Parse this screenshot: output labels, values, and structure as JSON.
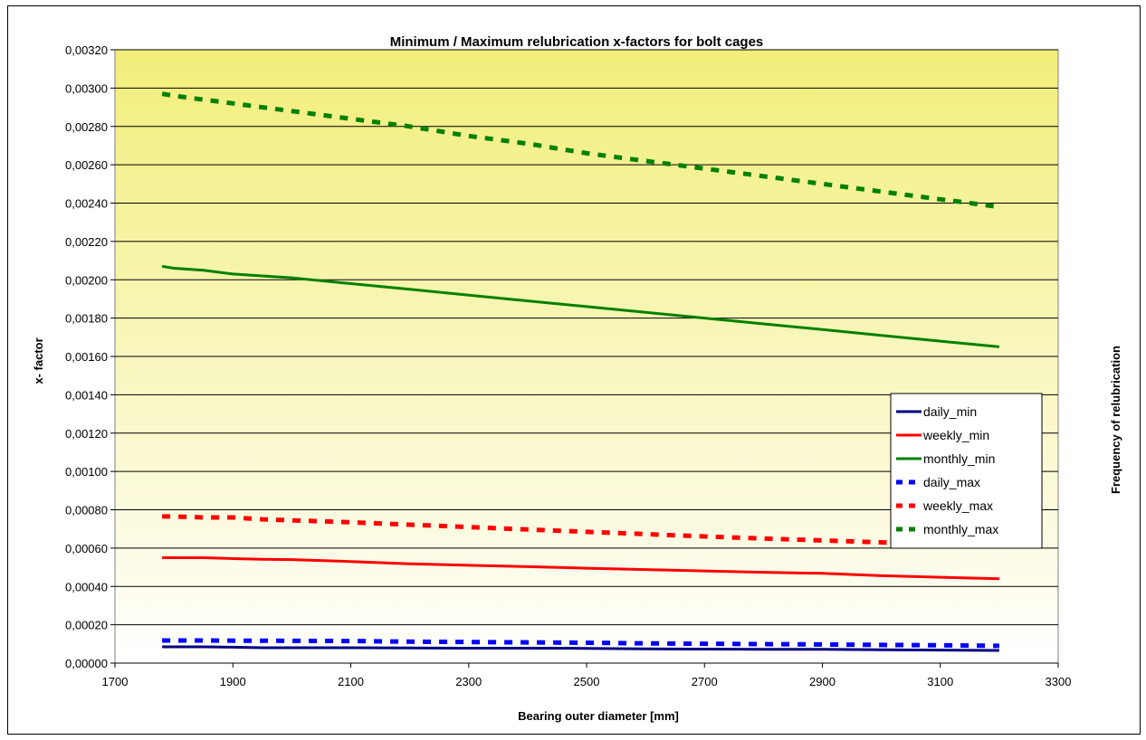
{
  "chart_data": {
    "type": "line",
    "title": "Minimum / Maximum relubrication x-factors for bolt cages",
    "xlabel": "Bearing outer diameter [mm]",
    "ylabel": "x- factor",
    "right_label": "Frequency of relubrication",
    "xlim": [
      1700,
      3300
    ],
    "ylim": [
      0,
      0.0032
    ],
    "x_ticks": [
      "1700",
      "1900",
      "2100",
      "2300",
      "2500",
      "2700",
      "2900",
      "3100",
      "3300"
    ],
    "y_ticks": [
      "0,00000",
      "0,00020",
      "0,00040",
      "0,00060",
      "0,00080",
      "0,00100",
      "0,00120",
      "0,00140",
      "0,00160",
      "0,00180",
      "0,00200",
      "0,00220",
      "0,00240",
      "0,00260",
      "0,00280",
      "0,00300",
      "0,00320"
    ],
    "grid": true,
    "legend_position": "right",
    "background": {
      "top_color": "#f2ee7a",
      "bottom_color": "#ffffff"
    },
    "series": [
      {
        "name": "daily_min",
        "color": "#000080",
        "style": "solid",
        "x": [
          1780,
          1800,
          1850,
          1900,
          1950,
          2000,
          2100,
          2200,
          2300,
          2400,
          2500,
          2600,
          2700,
          2800,
          2900,
          3000,
          3100,
          3200
        ],
        "y": [
          8.5e-05,
          8.5e-05,
          8.5e-05,
          8.3e-05,
          8e-05,
          8e-05,
          8e-05,
          7.9e-05,
          7.8e-05,
          7.8e-05,
          7.7e-05,
          7.4e-05,
          7.3e-05,
          7.2e-05,
          7.2e-05,
          7e-05,
          6.8e-05,
          6.6e-05
        ]
      },
      {
        "name": "weekly_min",
        "color": "#ff0000",
        "style": "solid",
        "x": [
          1780,
          1800,
          1850,
          1900,
          1950,
          2000,
          2100,
          2200,
          2300,
          2400,
          2500,
          2600,
          2700,
          2800,
          2900,
          3000,
          3100,
          3200
        ],
        "y": [
          0.00055,
          0.00055,
          0.00055,
          0.000545,
          0.000542,
          0.00054,
          0.00053,
          0.000518,
          0.00051,
          0.000503,
          0.000495,
          0.000488,
          0.000481,
          0.000474,
          0.000468,
          0.000456,
          0.000448,
          0.00044
        ]
      },
      {
        "name": "monthly_min",
        "color": "#008000",
        "style": "solid",
        "x": [
          1780,
          1800,
          1850,
          1900,
          1950,
          2000,
          2100,
          2200,
          2300,
          2400,
          2500,
          2600,
          2700,
          2800,
          2900,
          3000,
          3100,
          3200
        ],
        "y": [
          0.00207,
          0.00206,
          0.00205,
          0.00203,
          0.00202,
          0.00201,
          0.00198,
          0.00195,
          0.00192,
          0.00189,
          0.00186,
          0.00183,
          0.0018,
          0.00177,
          0.00174,
          0.00171,
          0.00168,
          0.00165
        ]
      },
      {
        "name": "daily_max",
        "color": "#0000ff",
        "style": "dashed",
        "x": [
          1780,
          1800,
          1850,
          1900,
          1950,
          2000,
          2100,
          2200,
          2300,
          2400,
          2500,
          2600,
          2700,
          2800,
          2900,
          3000,
          3100,
          3200
        ],
        "y": [
          0.000118,
          0.000118,
          0.000118,
          0.000117,
          0.000117,
          0.000116,
          0.000115,
          0.000112,
          0.00011,
          0.000108,
          0.000106,
          0.000103,
          0.000101,
          9.9e-05,
          9.7e-05,
          9.5e-05,
          9.3e-05,
          9e-05
        ]
      },
      {
        "name": "weekly_max",
        "color": "#ff0000",
        "style": "dashed",
        "x": [
          1780,
          1800,
          1850,
          1900,
          1950,
          2000,
          2100,
          2200,
          2300,
          2400,
          2500,
          2600,
          2700,
          2800,
          2900,
          3000,
          3100,
          3200
        ],
        "y": [
          0.000765,
          0.000765,
          0.00076,
          0.00076,
          0.00075,
          0.000745,
          0.000735,
          0.000722,
          0.00071,
          0.000697,
          0.000685,
          0.000673,
          0.000661,
          0.00065,
          0.00064,
          0.00063,
          0.00062,
          0.00061
        ]
      },
      {
        "name": "monthly_max",
        "color": "#008000",
        "style": "dashed",
        "x": [
          1780,
          1800,
          1850,
          1900,
          1950,
          2000,
          2100,
          2200,
          2300,
          2400,
          2500,
          2600,
          2700,
          2800,
          2900,
          3000,
          3100,
          3200
        ],
        "y": [
          0.00297,
          0.00296,
          0.00294,
          0.00292,
          0.0029,
          0.00288,
          0.00284,
          0.0028,
          0.00275,
          0.00271,
          0.00266,
          0.00262,
          0.00258,
          0.00254,
          0.0025,
          0.00246,
          0.00242,
          0.00238
        ]
      }
    ]
  }
}
